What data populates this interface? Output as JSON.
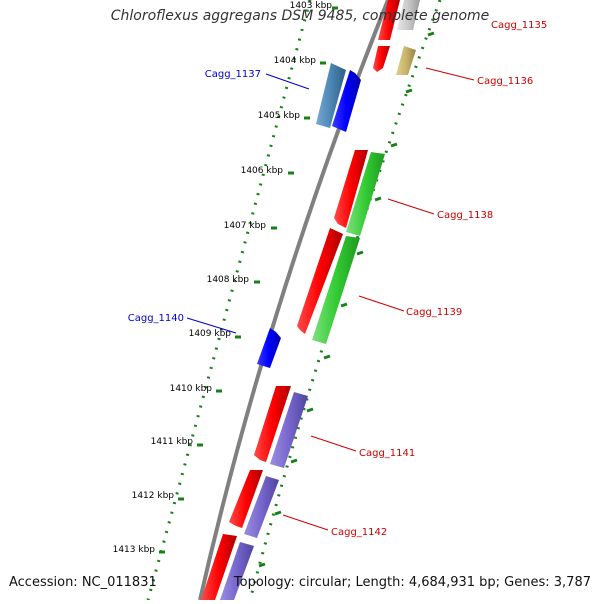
{
  "title": "Chloroflexus aggregans DSM 9485, complete genome",
  "accession": "Accession: NC_011831",
  "summary": "Topology: circular; Length: 4,684,931 bp; Genes: 3,787",
  "colors": {
    "backbone": "#808080",
    "tick": "#1a7f1a",
    "forward_cds": "#ff0000",
    "gene_blue": "#0000ff",
    "gene_green": "#33cc33",
    "gene_purple": "#7766cc",
    "gene_steelblue": "#4a86b4",
    "gene_khaki": "#c8b46a",
    "gene_grey": "#c8c8c8",
    "label_blue": "#0000cc",
    "label_red": "#cc0000"
  },
  "ruler": [
    {
      "label": "1403 kbp"
    },
    {
      "label": "1404 kbp"
    },
    {
      "label": "1405 kbp"
    },
    {
      "label": "1406 kbp"
    },
    {
      "label": "1407 kbp"
    },
    {
      "label": "1408 kbp"
    },
    {
      "label": "1409 kbp"
    },
    {
      "label": "1410 kbp"
    },
    {
      "label": "1411 kbp"
    },
    {
      "label": "1412 kbp"
    },
    {
      "label": "1413 kbp"
    }
  ],
  "gene_labels": [
    {
      "name": "Cagg_1135",
      "color": "label_red"
    },
    {
      "name": "Cagg_1136",
      "color": "label_red"
    },
    {
      "name": "Cagg_1137",
      "color": "label_blue"
    },
    {
      "name": "Cagg_1138",
      "color": "label_red"
    },
    {
      "name": "Cagg_1139",
      "color": "label_red"
    },
    {
      "name": "Cagg_1140",
      "color": "label_blue"
    },
    {
      "name": "Cagg_1141",
      "color": "label_red"
    },
    {
      "name": "Cagg_1142",
      "color": "label_red"
    }
  ]
}
